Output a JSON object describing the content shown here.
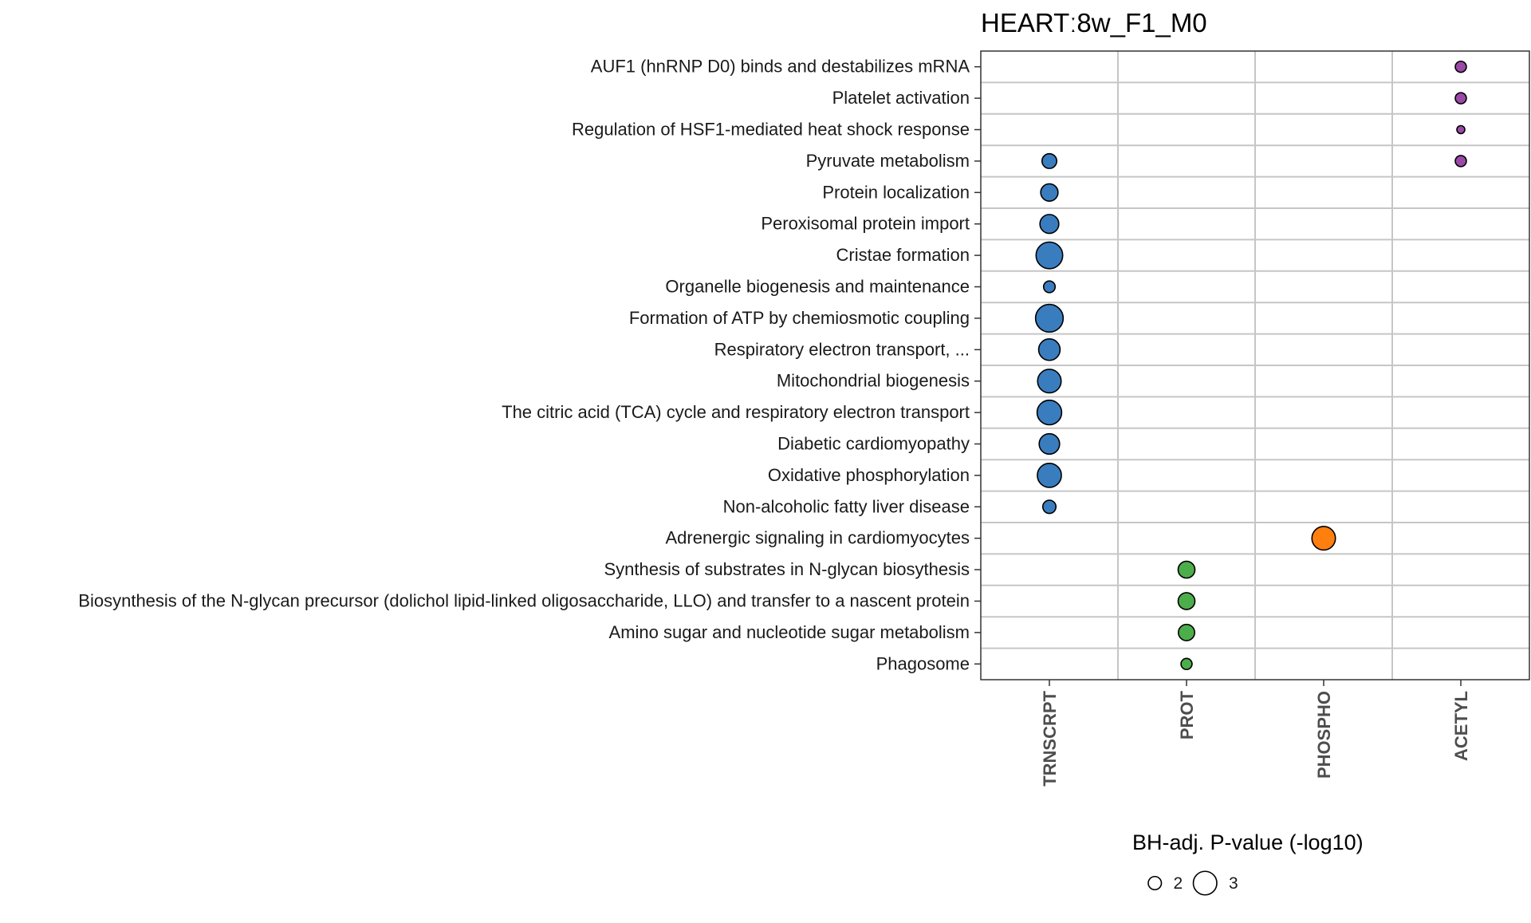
{
  "chart_data": {
    "type": "scatter",
    "title": "HEARTː8w_F1_M0",
    "columns": [
      "TRNSCRPT",
      "PROT",
      "PHOSPHO",
      "ACETYL"
    ],
    "rows": [
      "AUF1 (hnRNP D0) binds and destabilizes mRNA",
      "Platelet activation",
      "Regulation of HSF1-mediated heat shock response",
      "Pyruvate metabolism",
      "Protein localization",
      "Peroxisomal protein import",
      "Cristae formation",
      "Organelle biogenesis and maintenance",
      "Formation of ATP by chemiosmotic coupling",
      "Respiratory electron transport, ...",
      "Mitochondrial biogenesis",
      "The citric acid (TCA) cycle and respiratory electron transport",
      "Diabetic cardiomyopathy",
      "Oxidative phosphorylation",
      "Non-alcoholic fatty liver disease",
      "Adrenergic signaling in cardiomyocytes",
      "Synthesis of substrates in N-glycan biosythesis",
      "Biosynthesis of the N-glycan precursor (dolichol lipid-linked oligosaccharide, LLO) and transfer to a nascent protein",
      "Amino sugar and nucleotide sugar metabolism",
      "Phagosome"
    ],
    "colors": {
      "TRNSCRPT": "#3a7dbf",
      "PROT": "#4cae4a",
      "PHOSPHO": "#ff7f0e",
      "ACETYL": "#9a4aa6"
    },
    "points": [
      {
        "row": "AUF1 (hnRNP D0) binds and destabilizes mRNA",
        "column": "ACETYL",
        "value": 1.8
      },
      {
        "row": "Platelet activation",
        "column": "ACETYL",
        "value": 1.8
      },
      {
        "row": "Regulation of HSF1-mediated heat shock response",
        "column": "ACETYL",
        "value": 1.5
      },
      {
        "row": "Pyruvate metabolism",
        "column": "ACETYL",
        "value": 1.8
      },
      {
        "row": "Pyruvate metabolism",
        "column": "TRNSCRPT",
        "value": 2.15
      },
      {
        "row": "Protein localization",
        "column": "TRNSCRPT",
        "value": 2.4
      },
      {
        "row": "Peroxisomal protein import",
        "column": "TRNSCRPT",
        "value": 2.55
      },
      {
        "row": "Cristae formation",
        "column": "TRNSCRPT",
        "value": 3.3
      },
      {
        "row": "Organelle biogenesis and maintenance",
        "column": "TRNSCRPT",
        "value": 1.85
      },
      {
        "row": "Formation of ATP by chemiosmotic coupling",
        "column": "TRNSCRPT",
        "value": 3.4
      },
      {
        "row": "Respiratory electron transport, ...",
        "column": "TRNSCRPT",
        "value": 2.8
      },
      {
        "row": "Mitochondrial biogenesis",
        "column": "TRNSCRPT",
        "value": 3.0
      },
      {
        "row": "The citric acid (TCA) cycle and respiratory electron transport",
        "column": "TRNSCRPT",
        "value": 3.1
      },
      {
        "row": "Diabetic cardiomyopathy",
        "column": "TRNSCRPT",
        "value": 2.7
      },
      {
        "row": "Oxidative phosphorylation",
        "column": "TRNSCRPT",
        "value": 3.05
      },
      {
        "row": "Non-alcoholic fatty liver disease",
        "column": "TRNSCRPT",
        "value": 2.0
      },
      {
        "row": "Adrenergic signaling in cardiomyocytes",
        "column": "PHOSPHO",
        "value": 3.0
      },
      {
        "row": "Synthesis of substrates in N-glycan biosythesis",
        "column": "PROT",
        "value": 2.35
      },
      {
        "row": "Biosynthesis of the N-glycan precursor (dolichol lipid-linked oligosaccharide, LLO) and transfer to a nascent protein",
        "column": "PROT",
        "value": 2.35
      },
      {
        "row": "Amino sugar and nucleotide sugar metabolism",
        "column": "PROT",
        "value": 2.3
      },
      {
        "row": "Phagosome",
        "column": "PROT",
        "value": 1.8
      }
    ],
    "legend": {
      "title": "BH-adj. P-value (-log10)",
      "entries": [
        {
          "label": "2",
          "value": 2
        },
        {
          "label": "3",
          "value": 3
        }
      ],
      "placement": "bottom"
    },
    "grid": true
  }
}
